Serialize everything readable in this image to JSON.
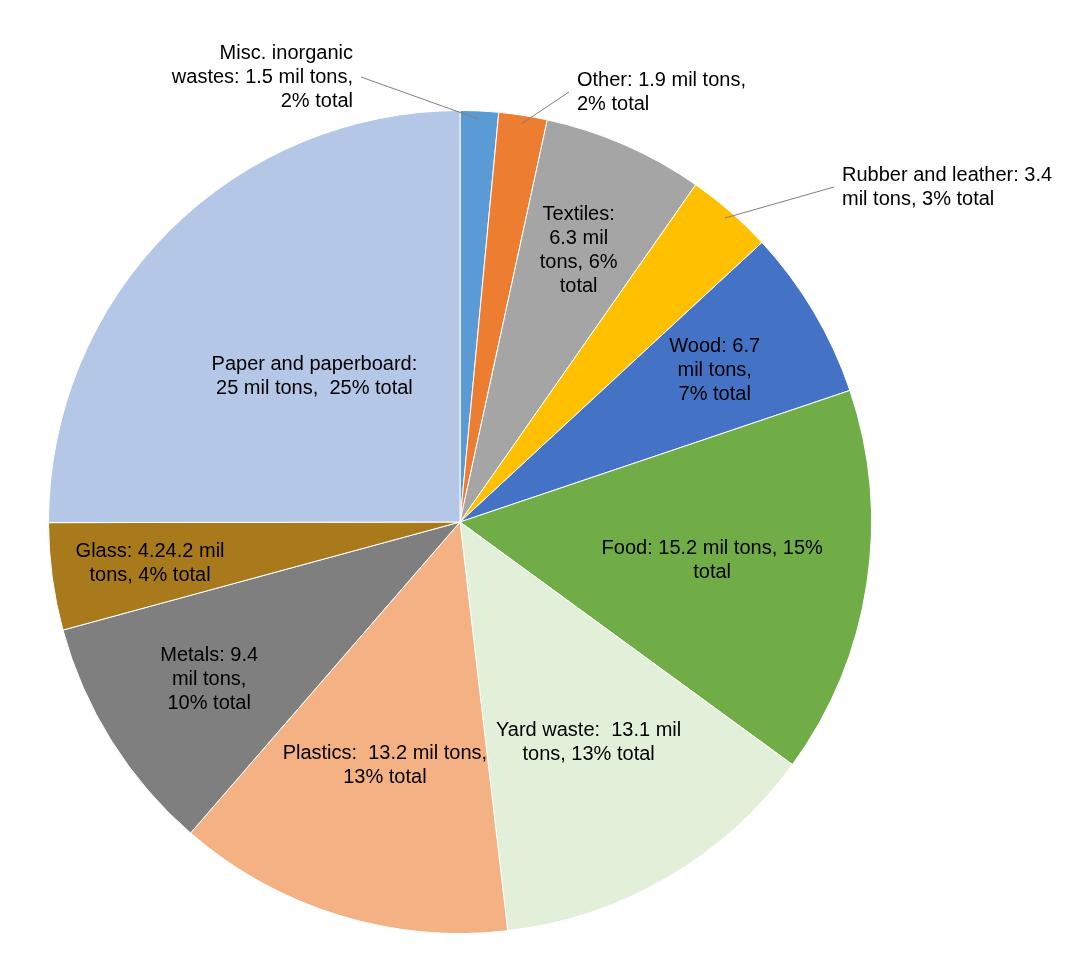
{
  "chart_data": {
    "type": "pie",
    "categories": [
      "Misc. inorganic wastes: 1.5 mil tons, 2% total",
      "Other: 1.9 mil tons, 2% total",
      "Textiles: 6.3 mil tons, 6% total",
      "Rubber and leather: 3.4 mil tons, 3% total",
      "Wood: 6.7 mil tons, 7% total",
      "Food: 15.2 mil tons, 15% total",
      "Yard waste:  13.1 mil tons, 13% total",
      "Plastics:  13.2 mil tons, 13% total",
      "Metals: 9.4 mil tons, 10% total",
      "Glass: 4.24.2 mil tons, 4% total",
      "Paper and paperboard: 25 mil tons,  25% total"
    ],
    "values": [
      1.5,
      1.9,
      6.3,
      3.4,
      6.7,
      15.2,
      13.1,
      13.2,
      9.4,
      4.2,
      25
    ],
    "colors": [
      "#5b9bd5",
      "#ed7d31",
      "#a5a5a5",
      "#ffc000",
      "#4472c4",
      "#70ad47",
      "#e2efd9",
      "#f4b183",
      "#7f7f7f",
      "#a87a1c",
      "#b4c7e7"
    ],
    "legend": false
  }
}
